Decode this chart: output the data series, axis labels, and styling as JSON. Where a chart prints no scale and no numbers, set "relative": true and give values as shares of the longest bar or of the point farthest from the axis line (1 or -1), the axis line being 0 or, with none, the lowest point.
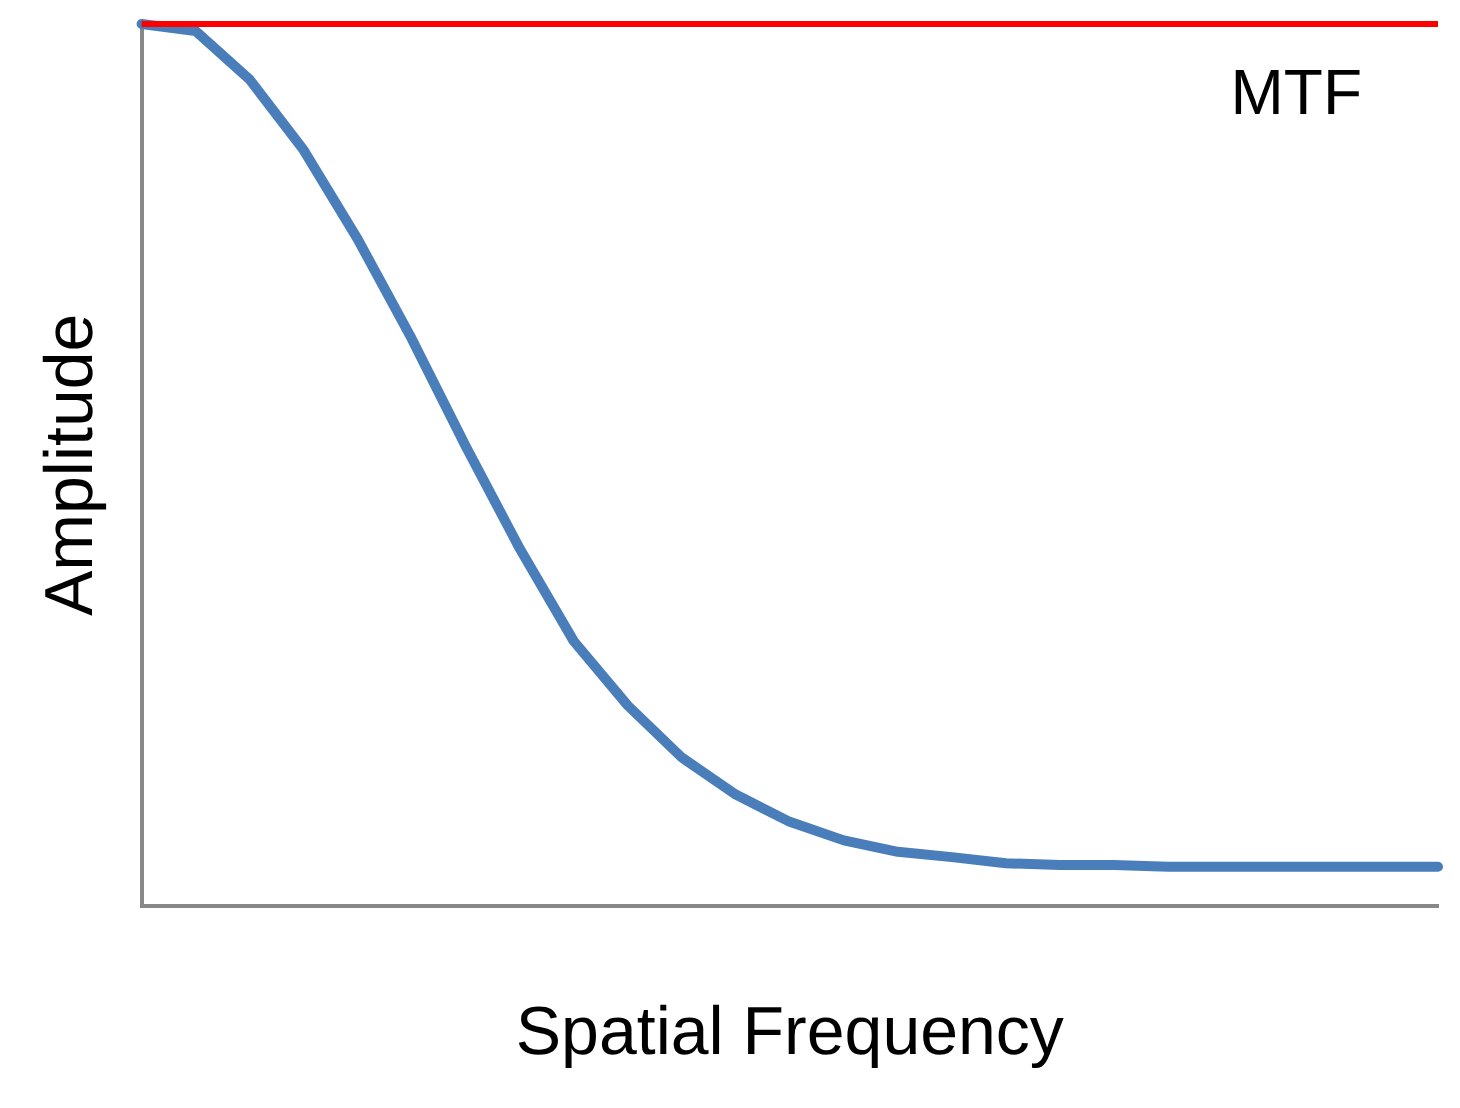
{
  "chart_data": {
    "type": "line",
    "relative": true,
    "xlabel": "Spatial Frequency",
    "ylabel": "Amplitude",
    "annotations": [
      "MTF"
    ],
    "categories": [
      null,
      null,
      null,
      null,
      null,
      null,
      null,
      null,
      null,
      null,
      null,
      null,
      null,
      null,
      null,
      null,
      null,
      null,
      null,
      null,
      null,
      null,
      null,
      null,
      null
    ],
    "series": [
      {
        "color": "#4a7ebb",
        "values": [
          1.0,
          0.992,
          0.937,
          0.857,
          0.756,
          0.643,
          0.521,
          0.405,
          0.3,
          0.227,
          0.168,
          0.126,
          0.095,
          0.074,
          0.061,
          0.055,
          0.048,
          0.046,
          0.046,
          0.044,
          0.044,
          0.044,
          0.044,
          0.044,
          0.044
        ]
      }
    ],
    "ref_lines": [
      {
        "axis": "y",
        "value": 1,
        "color": "#ff0000"
      }
    ],
    "legend": false,
    "grid": false,
    "marker": "none",
    "line_style": "solid"
  }
}
